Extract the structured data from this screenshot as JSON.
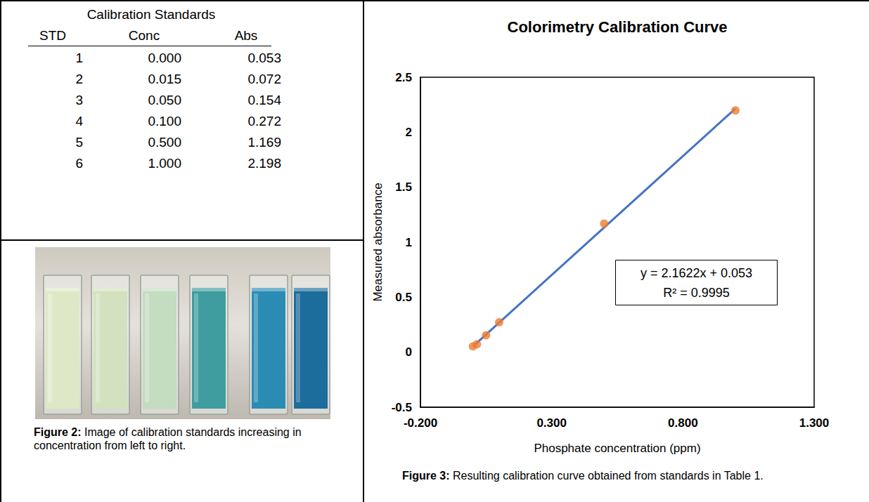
{
  "table": {
    "title": "Calibration Standards",
    "header": [
      "STD",
      "Conc",
      "Abs"
    ],
    "rows": [
      [
        "1",
        "0.000",
        "0.053"
      ],
      [
        "2",
        "0.015",
        "0.072"
      ],
      [
        "3",
        "0.050",
        "0.154"
      ],
      [
        "4",
        "0.100",
        "0.272"
      ],
      [
        "5",
        "0.500",
        "1.169"
      ],
      [
        "6",
        "1.000",
        "2.198"
      ]
    ]
  },
  "photo": {
    "colors": [
      "#dfe8c6",
      "#d2e2bf",
      "#c4dcc0",
      "#3f9d9f",
      "#2b8cb3",
      "#1c6d9c"
    ],
    "caption": {
      "label": "Figure 2:",
      "text": " Image of calibration standards increasing in concentration from left to right."
    }
  },
  "chart_data": {
    "type": "scatter",
    "title": "Colorimetry Calibration Curve",
    "x_label": "Phosphate concentration (ppm)",
    "y_label": "Measured absorbance",
    "x": [
      0.0,
      0.015,
      0.05,
      0.1,
      0.5,
      1.0
    ],
    "values": [
      0.053,
      0.072,
      0.154,
      0.272,
      1.169,
      2.198
    ],
    "color": "#ed7d31",
    "marker": "circle",
    "trendline": {
      "x": [
        0,
        1
      ],
      "values": [
        0.053,
        2.2152
      ],
      "color": "#4472c4",
      "line_style": "solid"
    },
    "annotations": [
      "y = 2.1622x + 0.053",
      "R² = 0.9995"
    ],
    "xlim": [
      -0.2,
      1.3
    ],
    "xticks": [
      {
        "value": -0.2,
        "label": "-0.200"
      },
      {
        "value": 0.3,
        "label": "0.300"
      },
      {
        "value": 0.8,
        "label": "0.800"
      },
      {
        "value": 1.3,
        "label": "1.300"
      }
    ],
    "ylim": [
      -0.5,
      2.5
    ],
    "yticks": [
      -0.5,
      0,
      0.5,
      1,
      1.5,
      2,
      2.5
    ],
    "grid": false,
    "caption": {
      "label": "Figure 3:",
      "text": " Resulting calibration curve obtained from standards in Table 1."
    }
  }
}
